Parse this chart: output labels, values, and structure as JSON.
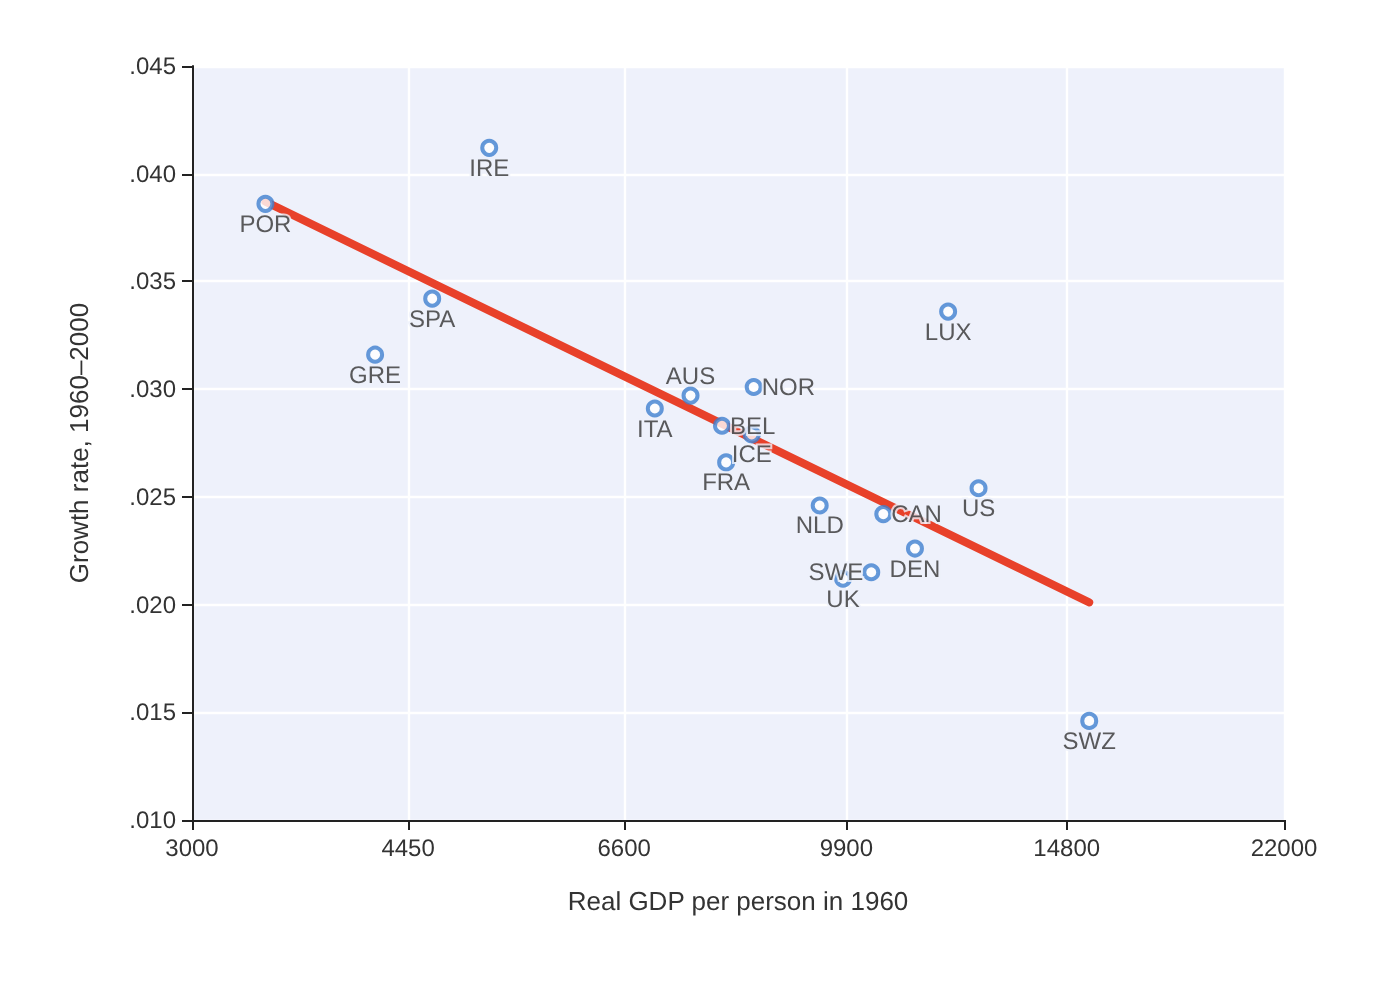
{
  "chart_data": {
    "type": "scatter",
    "xlabel": "Real GDP per person in 1960",
    "ylabel": "Growth rate, 1960–2000",
    "log": "x",
    "xlim": [
      3000,
      22000
    ],
    "xticks": [
      3000,
      4450,
      6600,
      9900,
      14800,
      22000
    ],
    "ylim": [
      0.01,
      0.045
    ],
    "yticks": [
      {
        "value": 0.01,
        "label": ".010"
      },
      {
        "value": 0.015,
        "label": ".015"
      },
      {
        "value": 0.02,
        "label": ".020"
      },
      {
        "value": 0.025,
        "label": ".025"
      },
      {
        "value": 0.03,
        "label": ".030"
      },
      {
        "value": 0.035,
        "label": ".035"
      },
      {
        "value": 0.04,
        "label": ".040"
      },
      {
        "value": 0.045,
        "label": ".045"
      }
    ],
    "grid": true,
    "marker": "circle",
    "series": [
      {
        "color": "#3f7fd0",
        "x": [
          3430,
          5160,
          4650,
          4190,
          6980,
          7450,
          7890,
          8330,
          8360,
          7950,
          9430,
          10590,
          12600,
          11920,
          11220,
          9840,
          10360,
          15420
        ],
        "values": [
          0.0386,
          0.0412,
          0.0342,
          0.0316,
          0.0291,
          0.0297,
          0.0283,
          0.0279,
          0.0301,
          0.0266,
          0.0246,
          0.0242,
          0.0254,
          0.0336,
          0.0226,
          0.0212,
          0.0215,
          0.0146
        ]
      },
      {
        "type": "line",
        "color": "#e8412a",
        "line_style": "solid",
        "marker": "none",
        "x": [
          3430,
          15420
        ],
        "values": [
          0.0387,
          0.0201
        ]
      }
    ],
    "annotations": [
      {
        "text": "POR",
        "x": 3430,
        "y": 0.0386
      },
      {
        "text": "IRE",
        "x": 5160,
        "y": 0.0412
      },
      {
        "text": "SPA",
        "x": 4650,
        "y": 0.0342
      },
      {
        "text": "GRE",
        "x": 4190,
        "y": 0.0316
      },
      {
        "text": "ITA",
        "x": 6980,
        "y": 0.0291
      },
      {
        "text": "AUS",
        "x": 7450,
        "y": 0.0297
      },
      {
        "text": "BEL",
        "x": 7890,
        "y": 0.0283
      },
      {
        "text": "ICE",
        "x": 8330,
        "y": 0.0279
      },
      {
        "text": "NOR",
        "x": 8360,
        "y": 0.0301
      },
      {
        "text": "FRA",
        "x": 7950,
        "y": 0.0266
      },
      {
        "text": "NLD",
        "x": 9430,
        "y": 0.0246
      },
      {
        "text": "CAN",
        "x": 10590,
        "y": 0.0242
      },
      {
        "text": "US",
        "x": 12600,
        "y": 0.0254
      },
      {
        "text": "LUX",
        "x": 11920,
        "y": 0.0336
      },
      {
        "text": "DEN",
        "x": 11220,
        "y": 0.0226
      },
      {
        "text": "UK",
        "x": 9840,
        "y": 0.0212
      },
      {
        "text": "SWE",
        "x": 10360,
        "y": 0.0215
      },
      {
        "text": "SWZ",
        "x": 15420,
        "y": 0.0146
      }
    ]
  }
}
